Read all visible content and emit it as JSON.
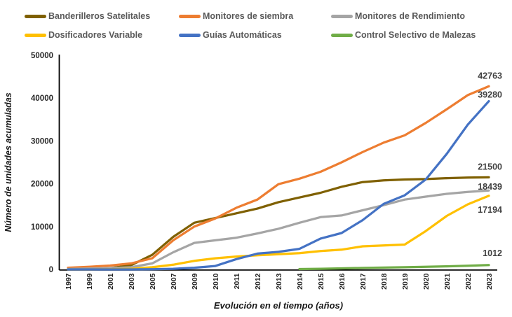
{
  "chart_data": {
    "type": "line",
    "title": "",
    "xlabel": "Evolución en el tiempo (años)",
    "ylabel": "Número de unidades acumuladas",
    "ylim": [
      0,
      50000
    ],
    "grid": false,
    "legend_position": "top",
    "ytick_values": [
      0,
      10000,
      20000,
      30000,
      40000,
      50000
    ],
    "ytick_labels": [
      "0",
      "10000",
      "20000",
      "30000",
      "40000",
      "50000"
    ],
    "categories": [
      "1997",
      "1999",
      "2001",
      "2003",
      "2005",
      "2007",
      "2009",
      "2010",
      "2011",
      "2012",
      "2013",
      "2014",
      "2015",
      "2016",
      "2017",
      "2018",
      "2019",
      "2020",
      "2021",
      "2022",
      "2023"
    ],
    "series": [
      {
        "name": "Banderilleros Satelitales",
        "color": "#7F6000",
        "end_label": "21500",
        "values": [
          50,
          100,
          300,
          1000,
          3400,
          7600,
          10900,
          12000,
          13100,
          14200,
          15700,
          16800,
          17900,
          19300,
          20400,
          20800,
          21000,
          21100,
          21300,
          21450,
          21500
        ]
      },
      {
        "name": "Monitores de siembra",
        "color": "#ED7D31",
        "end_label": "42763",
        "values": [
          400,
          600,
          900,
          1400,
          2600,
          6800,
          10000,
          11900,
          14400,
          16300,
          19900,
          21200,
          22800,
          25000,
          27400,
          29600,
          31300,
          34200,
          37400,
          40700,
          42763
        ]
      },
      {
        "name": "Monitores de Rendimiento",
        "color": "#A5A5A5",
        "end_label": "18439",
        "values": [
          100,
          200,
          300,
          500,
          1400,
          4000,
          6200,
          6800,
          7400,
          8400,
          9500,
          10900,
          12200,
          12600,
          13800,
          15000,
          16300,
          17000,
          17650,
          18100,
          18439
        ]
      },
      {
        "name": "Dosificadores Variable",
        "color": "#FFC000",
        "end_label": "17194",
        "values": [
          0,
          0,
          50,
          150,
          500,
          1100,
          2000,
          2600,
          3000,
          3300,
          3550,
          3800,
          4300,
          4600,
          5400,
          5600,
          5800,
          8960,
          12500,
          15200,
          17194
        ]
      },
      {
        "name": "Guías Automáticas",
        "color": "#4472C4",
        "end_label": "39280",
        "values": [
          0,
          0,
          0,
          0,
          50,
          150,
          400,
          800,
          2400,
          3700,
          4100,
          4800,
          7200,
          8500,
          11500,
          15300,
          17300,
          21000,
          27000,
          33800,
          39280
        ]
      },
      {
        "name": "Control Selectivo de Malezas",
        "color": "#70AD47",
        "end_label": "1012",
        "values": [
          null,
          null,
          null,
          null,
          null,
          null,
          null,
          null,
          null,
          null,
          null,
          80,
          150,
          250,
          350,
          420,
          500,
          600,
          720,
          850,
          1012
        ]
      }
    ]
  }
}
